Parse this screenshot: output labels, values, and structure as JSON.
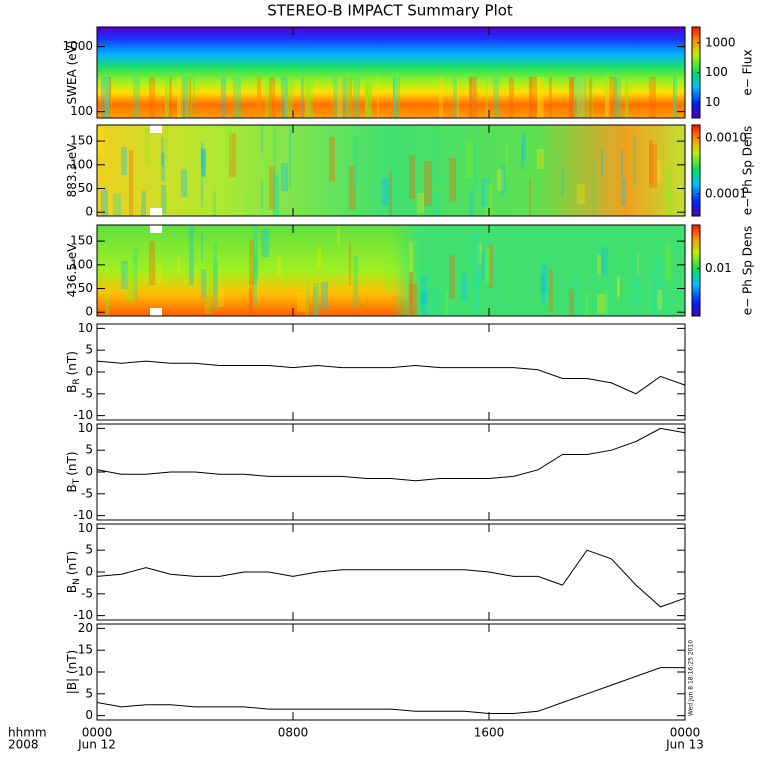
{
  "title": "STEREO-B IMPACT Summary Plot",
  "timestamp": "Wed Jun  8 18:16:25 2010",
  "x_axis": {
    "xlim": [
      0,
      24
    ],
    "xticks": [
      {
        "value": 0,
        "label": "0000"
      },
      {
        "value": 8,
        "label": "0800"
      },
      {
        "value": 16,
        "label": "1600"
      },
      {
        "value": 24,
        "label": "0000"
      }
    ],
    "date_labels": [
      {
        "value": 0,
        "label": "Jun 12"
      },
      {
        "value": 24,
        "label": "Jun 13"
      }
    ],
    "row_labels": [
      "hhmm",
      "2008"
    ],
    "x": [
      0,
      1,
      2,
      3,
      4,
      5,
      6,
      7,
      8,
      9,
      10,
      11,
      12,
      13,
      14,
      15,
      16,
      17,
      18,
      19,
      20,
      21,
      22,
      23,
      24
    ]
  },
  "chart_data": [
    {
      "type": "spectrogram",
      "ylabel": "SWEA (eV)",
      "ylim": [
        80,
        2000
      ],
      "ylog": true,
      "yticks": [
        100,
        1000
      ],
      "colorbar_label": "e− Flux",
      "clim": [
        3,
        3400
      ],
      "clog": true,
      "cticks": [
        10,
        100,
        1000
      ]
    },
    {
      "type": "spectrogram",
      "ylabel": "883.3 eV",
      "ylim": [
        -8,
        184
      ],
      "yticks": [
        0,
        50,
        100,
        150
      ],
      "colorbar_label": "e− Ph Sp Dens",
      "clim": [
        4e-05,
        0.0017
      ],
      "clog": true,
      "cticks": [
        0.0001,
        {
          "value": 0.001,
          "label": "0.0010"
        }
      ]
    },
    {
      "type": "spectrogram",
      "ylabel": "436.5 eV",
      "ylim": [
        -8,
        184
      ],
      "yticks": [
        0,
        50,
        100,
        150
      ],
      "colorbar_label": "e− Ph Sp Dens",
      "clim": [
        0.003,
        0.03
      ],
      "clog": true,
      "cticks": [
        0.01
      ]
    },
    {
      "type": "line",
      "ylabel": "B",
      "ylabel_sub": "R",
      "ylabel_unit": "(nT)",
      "ylim": [
        -11,
        11
      ],
      "yticks": [
        -10,
        -5,
        0,
        5,
        10
      ],
      "color": "#000000",
      "values": [
        2.5,
        2,
        2.5,
        2,
        2,
        1.5,
        1.5,
        1.5,
        1,
        1.5,
        1,
        1,
        1,
        1.5,
        1,
        1,
        1,
        1,
        0.5,
        -1.5,
        -1.5,
        -2.5,
        -5,
        -1,
        -3
      ]
    },
    {
      "type": "line",
      "ylabel": "B",
      "ylabel_sub": "T",
      "ylabel_unit": "(nT)",
      "ylim": [
        -11,
        11
      ],
      "yticks": [
        -10,
        -5,
        0,
        5,
        10
      ],
      "color": "#000000",
      "values": [
        0.5,
        -0.5,
        -0.5,
        0,
        0,
        -0.5,
        -0.5,
        -1,
        -1,
        -1,
        -1,
        -1.5,
        -1.5,
        -2,
        -1.5,
        -1.5,
        -1.5,
        -1,
        0.5,
        4,
        4,
        5,
        7,
        10,
        9
      ]
    },
    {
      "type": "line",
      "ylabel": "B",
      "ylabel_sub": "N",
      "ylabel_unit": "(nT)",
      "ylim": [
        -11,
        11
      ],
      "yticks": [
        -10,
        -5,
        0,
        5,
        10
      ],
      "color": "#000000",
      "values": [
        -1,
        -0.5,
        1,
        -0.5,
        -1,
        -1,
        0,
        0,
        -1,
        0,
        0.5,
        0.5,
        0.5,
        0.5,
        0.5,
        0.5,
        0,
        -1,
        -1,
        -3,
        5,
        3,
        -3,
        -8,
        -6
      ]
    },
    {
      "type": "line",
      "ylabel": "|B| (nT)",
      "ylim": [
        -1,
        21
      ],
      "yticks": [
        0,
        5,
        10,
        15,
        20
      ],
      "color": "#000000",
      "values": [
        3,
        2,
        2.5,
        2.5,
        2,
        2,
        2,
        1.5,
        1.5,
        1.5,
        1.5,
        1.5,
        1.5,
        1,
        1,
        1,
        0.5,
        0.5,
        1,
        3,
        5,
        7,
        9,
        11,
        11
      ]
    }
  ]
}
